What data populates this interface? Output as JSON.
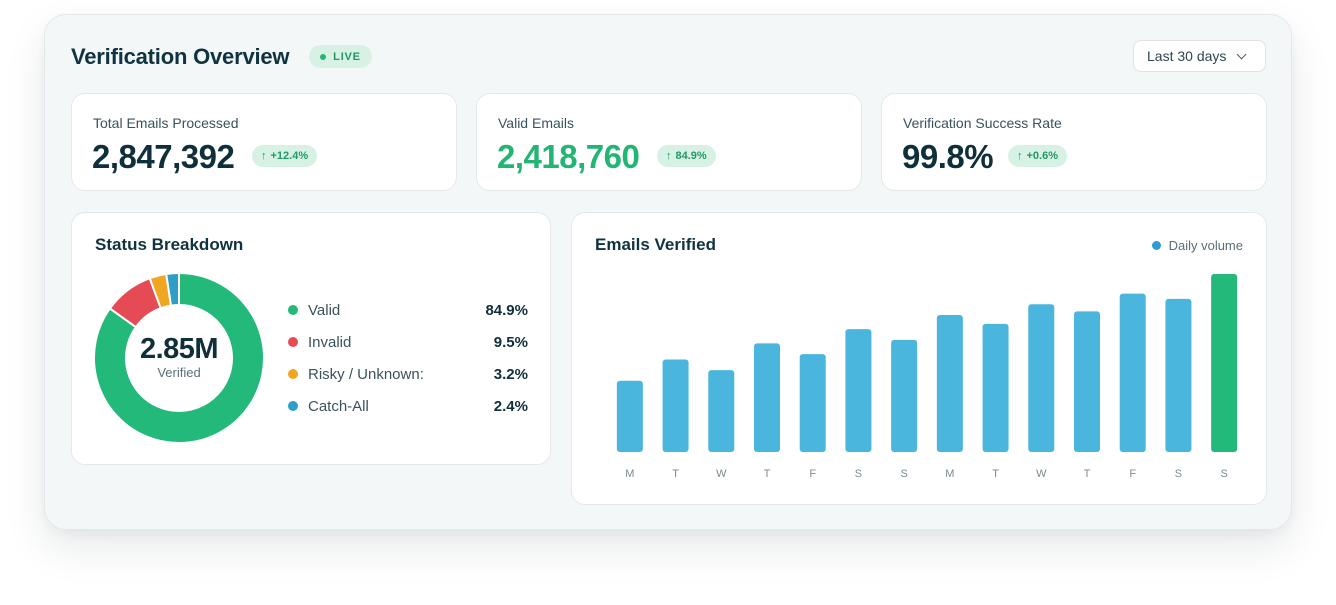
{
  "header": {
    "title": "Verification Overview",
    "live_label": "LIVE",
    "range_select": "Last 30 days"
  },
  "stats": [
    {
      "label": "Total Emails Processed",
      "value": "2,847,392",
      "delta": "+12.4%"
    },
    {
      "label": "Valid Emails",
      "value": "2,418,760",
      "delta": "84.9%"
    },
    {
      "label": "Verification Success Rate",
      "value": "99.8%",
      "delta": "+0.6%"
    }
  ],
  "status": {
    "title": "Status Breakdown",
    "center_value": "2.85M",
    "center_label": "Verified",
    "items": [
      {
        "label": "Valid",
        "value": "84.9%",
        "pct": 84.9,
        "color": "#22b97a"
      },
      {
        "label": "Invalid",
        "value": "9.5%",
        "pct": 9.5,
        "color": "#e54b55"
      },
      {
        "label": "Risky / Unknown:",
        "value": "3.2%",
        "pct": 3.2,
        "color": "#f0a623"
      },
      {
        "label": "Catch-All",
        "value": "2.4%",
        "pct": 2.4,
        "color": "#2c9ec7"
      }
    ]
  },
  "emails_chart": {
    "title": "Emails Verified",
    "legend": "Daily volume",
    "colors": {
      "bar": "#4bb6dd",
      "highlight": "#22b97a",
      "accent_text": "#2f9bd0"
    }
  },
  "chart_data": {
    "type": "bar",
    "categories": [
      "M",
      "T",
      "W",
      "T",
      "F",
      "S",
      "S",
      "M",
      "T",
      "W",
      "T",
      "F",
      "S",
      "S"
    ],
    "series": [
      {
        "name": "Daily volume",
        "values": [
          40,
          52,
          46,
          61,
          55,
          69,
          63,
          77,
          72,
          83,
          79,
          89,
          86,
          100
        ]
      }
    ],
    "highlight_index": 13,
    "ylim": [
      0,
      100
    ],
    "grid": false,
    "legend_position": "top-right"
  }
}
